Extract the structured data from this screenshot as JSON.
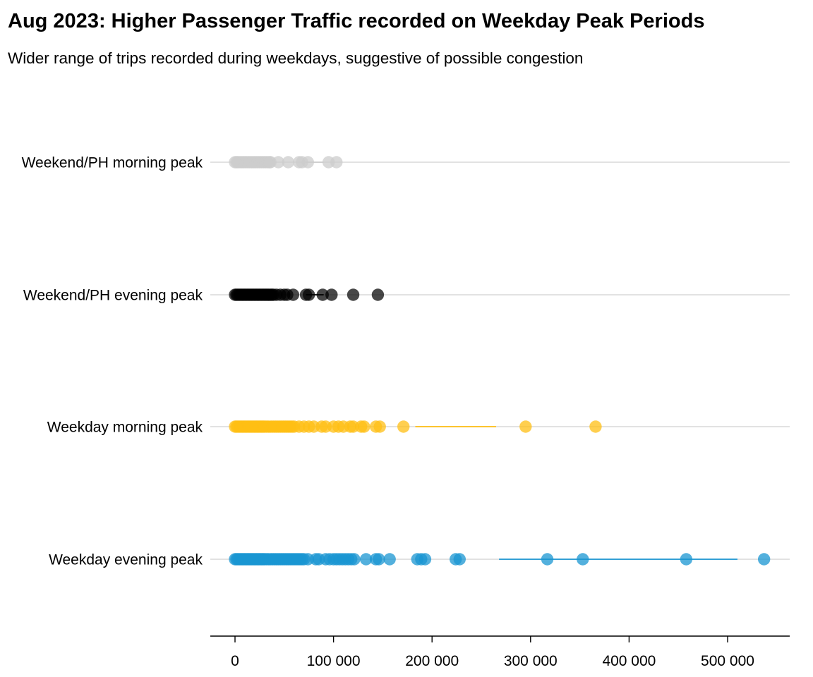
{
  "chart_data": {
    "type": "scatter",
    "title": "Aug 2023: Higher Passenger Traffic recorded on Weekday Peak Periods",
    "subtitle": "Wider range of trips recorded during weekdays, suggestive of possible congestion",
    "xlabel": "",
    "ylabel": "",
    "xlim": [
      -25000,
      560000
    ],
    "xticks": [
      0,
      100000,
      200000,
      300000,
      400000,
      500000
    ],
    "xtick_labels": [
      "0",
      "100 000",
      "200 000",
      "300 000",
      "400 000",
      "500 000"
    ],
    "grid": "horizontal lines only",
    "legend": "none",
    "series": [
      {
        "name": "Weekend/PH morning peak",
        "color": "#cccccc",
        "range_line": [
          72000,
          90000
        ],
        "values": [
          0,
          1500,
          3000,
          5000,
          7000,
          9000,
          11000,
          13000,
          15000,
          17000,
          19000,
          21000,
          23000,
          25000,
          27000,
          29000,
          31000,
          33000,
          35000,
          36000,
          44000,
          54000,
          65000,
          68000,
          74000,
          95000,
          103000
        ]
      },
      {
        "name": "Weekend/PH evening peak",
        "color": "#000000",
        "range_line": [
          72000,
          90000
        ],
        "values": [
          0,
          1500,
          3000,
          4500,
          6000,
          7500,
          9000,
          10500,
          12000,
          13500,
          15000,
          16500,
          18000,
          19500,
          21000,
          22500,
          24000,
          25500,
          27000,
          28500,
          30000,
          31500,
          33000,
          34500,
          36000,
          37500,
          39000,
          42000,
          46000,
          50000,
          53000,
          59000,
          72000,
          75000,
          89000,
          98000,
          120000,
          145000
        ]
      },
      {
        "name": "Weekday morning peak",
        "color": "#ffbf14",
        "range_line": [
          183000,
          265000
        ],
        "values": [
          0,
          1500,
          3000,
          4500,
          6000,
          7500,
          9000,
          10500,
          12000,
          13500,
          15000,
          16500,
          18000,
          19500,
          21000,
          22500,
          24000,
          25500,
          27000,
          28500,
          30000,
          32000,
          34000,
          36000,
          38000,
          40000,
          42000,
          44000,
          46000,
          48000,
          50000,
          52000,
          54000,
          56000,
          58000,
          60000,
          65000,
          70000,
          75000,
          80000,
          88000,
          92000,
          100000,
          105000,
          110000,
          117000,
          120000,
          128000,
          131000,
          143000,
          147000,
          171000,
          295000,
          366000
        ]
      },
      {
        "name": "Weekday evening peak",
        "color": "#1a96d2",
        "range_line": [
          268000,
          510000
        ],
        "values": [
          0,
          1500,
          3000,
          4500,
          6000,
          7500,
          9000,
          10500,
          12000,
          13500,
          15000,
          16500,
          18000,
          19500,
          21000,
          22500,
          24000,
          25500,
          27000,
          28500,
          30000,
          32000,
          34000,
          36000,
          38000,
          40000,
          42000,
          44000,
          46000,
          48000,
          50000,
          52000,
          54000,
          56000,
          58000,
          60000,
          62000,
          64000,
          66000,
          68000,
          70000,
          74000,
          82000,
          85000,
          92000,
          96000,
          100000,
          103000,
          106000,
          109000,
          112000,
          115000,
          118000,
          121000,
          133000,
          143000,
          146000,
          157000,
          185000,
          189000,
          193000,
          224000,
          228000,
          317000,
          353000,
          458000,
          537000
        ]
      }
    ]
  }
}
